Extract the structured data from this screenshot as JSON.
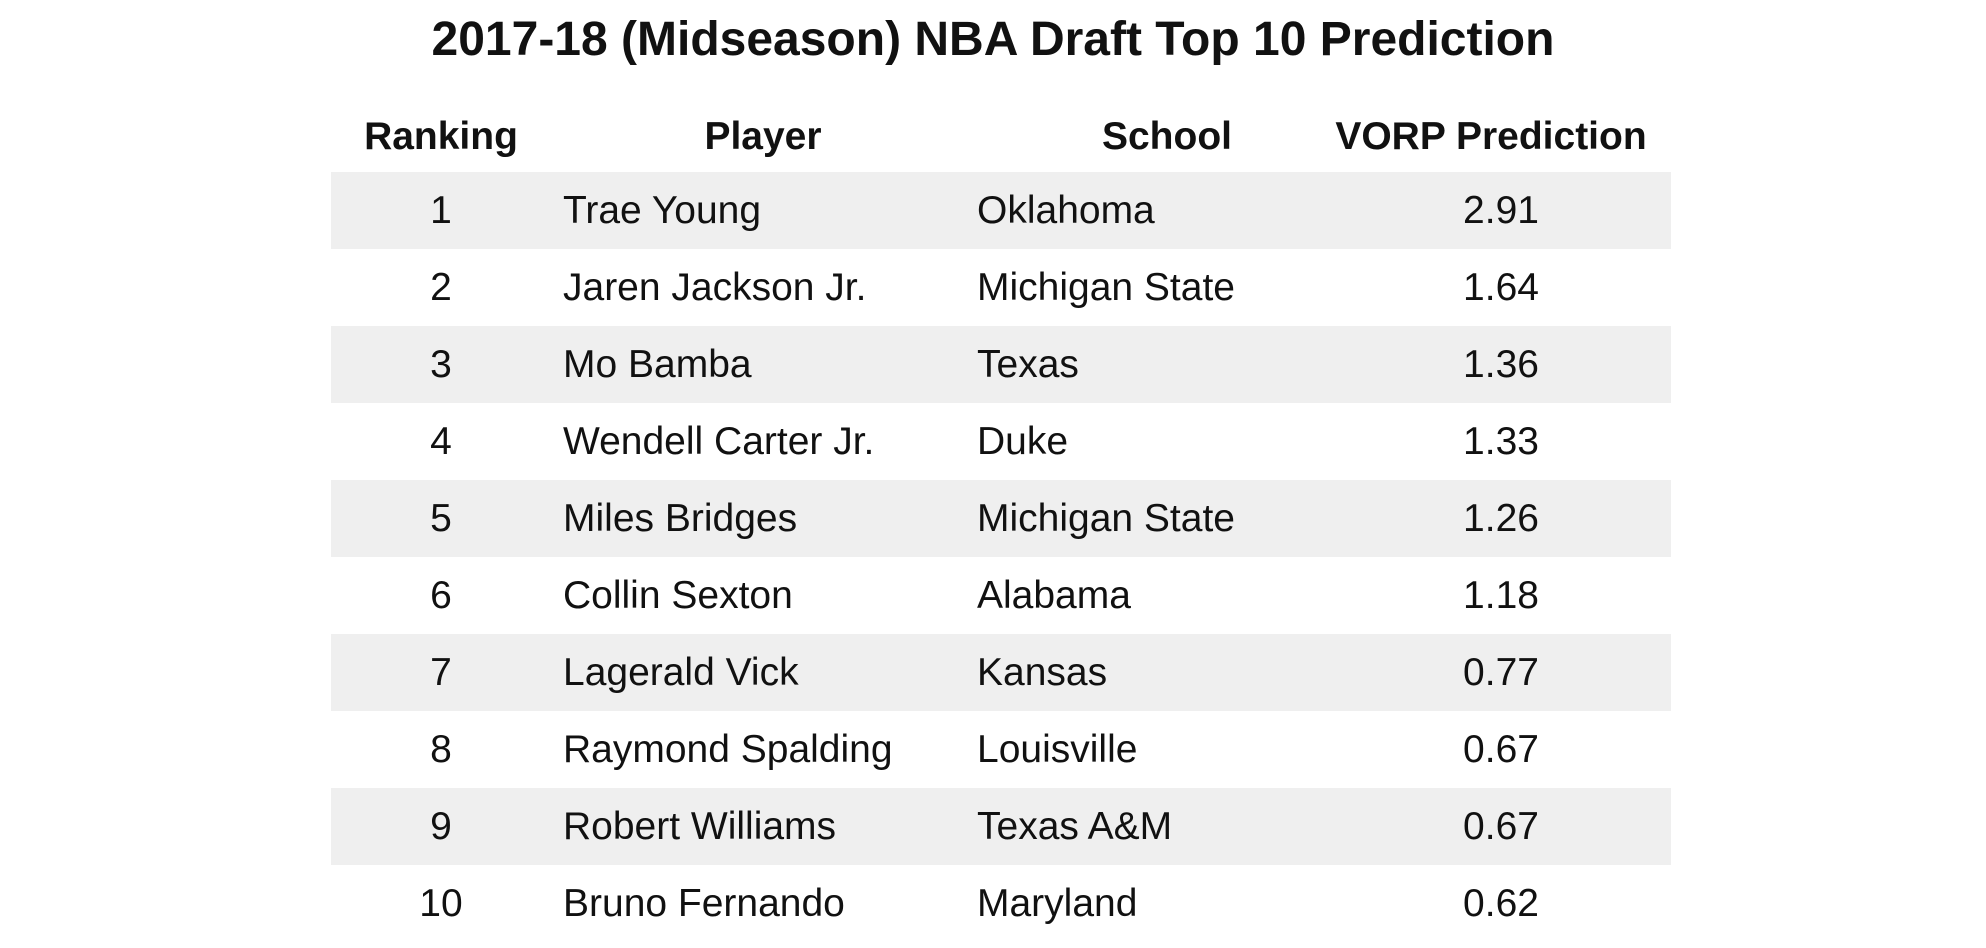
{
  "chart_data": {
    "type": "table",
    "title": "2017-18 (Midseason) NBA Draft Top 10 Prediction",
    "columns": [
      "Ranking",
      "Player",
      "School",
      "VORP Prediction"
    ],
    "rows": [
      {
        "ranking": "1",
        "player": "Trae Young",
        "school": "Oklahoma",
        "vorp": "2.91"
      },
      {
        "ranking": "2",
        "player": "Jaren Jackson Jr.",
        "school": "Michigan State",
        "vorp": "1.64"
      },
      {
        "ranking": "3",
        "player": "Mo Bamba",
        "school": "Texas",
        "vorp": "1.36"
      },
      {
        "ranking": "4",
        "player": "Wendell Carter Jr.",
        "school": "Duke",
        "vorp": "1.33"
      },
      {
        "ranking": "5",
        "player": "Miles Bridges",
        "school": "Michigan State",
        "vorp": "1.26"
      },
      {
        "ranking": "6",
        "player": "Collin Sexton",
        "school": "Alabama",
        "vorp": "1.18"
      },
      {
        "ranking": "7",
        "player": "Lagerald Vick",
        "school": "Kansas",
        "vorp": "0.77"
      },
      {
        "ranking": "8",
        "player": "Raymond Spalding",
        "school": "Louisville",
        "vorp": "0.67"
      },
      {
        "ranking": "9",
        "player": "Robert Williams",
        "school": "Texas A&M",
        "vorp": "0.67"
      },
      {
        "ranking": "10",
        "player": "Bruno Fernando",
        "school": "Maryland",
        "vorp": "0.62"
      }
    ],
    "stripe_color": "#efefef",
    "background_color": "#ffffff"
  }
}
